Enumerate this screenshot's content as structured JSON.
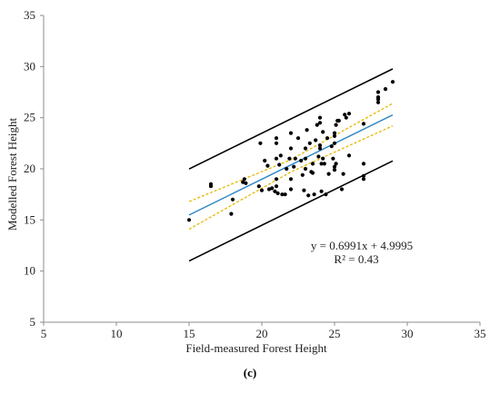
{
  "chart_data": {
    "type": "scatter",
    "xlabel": "Field-measured Forest Height",
    "ylabel": "Modelled Forest Height",
    "xlim": [
      5,
      35
    ],
    "ylim": [
      5,
      35
    ],
    "x_ticks": [
      5,
      10,
      15,
      20,
      25,
      30,
      35
    ],
    "y_ticks": [
      5,
      10,
      15,
      20,
      25,
      30,
      35
    ],
    "grid": false,
    "points": [
      [
        15.0,
        15.0
      ],
      [
        16.5,
        18.5
      ],
      [
        16.5,
        18.3
      ],
      [
        17.9,
        15.6
      ],
      [
        18.0,
        17.0
      ],
      [
        18.7,
        18.7
      ],
      [
        18.8,
        19.0
      ],
      [
        18.9,
        18.6
      ],
      [
        19.8,
        18.3
      ],
      [
        19.9,
        22.5
      ],
      [
        20.0,
        17.9
      ],
      [
        20.2,
        20.8
      ],
      [
        20.4,
        20.3
      ],
      [
        20.5,
        18.0
      ],
      [
        20.7,
        18.1
      ],
      [
        20.9,
        17.8
      ],
      [
        21.0,
        22.5
      ],
      [
        21.0,
        21.0
      ],
      [
        21.0,
        19.0
      ],
      [
        21.0,
        18.3
      ],
      [
        21.0,
        23.0
      ],
      [
        21.1,
        17.6
      ],
      [
        21.2,
        20.4
      ],
      [
        21.3,
        21.3
      ],
      [
        21.4,
        17.5
      ],
      [
        21.6,
        17.5
      ],
      [
        21.7,
        20.0
      ],
      [
        21.9,
        21.0
      ],
      [
        22.0,
        19.0
      ],
      [
        22.0,
        18.0
      ],
      [
        22.0,
        22.0
      ],
      [
        22.0,
        23.5
      ],
      [
        22.2,
        20.2
      ],
      [
        22.3,
        21.0
      ],
      [
        22.5,
        23.0
      ],
      [
        22.7,
        20.8
      ],
      [
        22.8,
        19.4
      ],
      [
        22.9,
        17.9
      ],
      [
        23.0,
        21.0
      ],
      [
        23.0,
        22.0
      ],
      [
        23.0,
        20.0
      ],
      [
        23.1,
        23.8
      ],
      [
        23.2,
        17.4
      ],
      [
        23.3,
        22.5
      ],
      [
        23.4,
        19.7
      ],
      [
        23.5,
        19.6
      ],
      [
        23.5,
        20.5
      ],
      [
        23.6,
        17.5
      ],
      [
        23.7,
        22.8
      ],
      [
        23.8,
        24.3
      ],
      [
        23.9,
        21.2
      ],
      [
        24.0,
        22.3
      ],
      [
        24.0,
        22.0
      ],
      [
        24.0,
        25.0
      ],
      [
        24.0,
        24.5
      ],
      [
        24.1,
        20.5
      ],
      [
        24.1,
        17.8
      ],
      [
        24.2,
        21.0
      ],
      [
        24.2,
        23.6
      ],
      [
        24.3,
        20.5
      ],
      [
        24.4,
        17.5
      ],
      [
        24.5,
        23.0
      ],
      [
        24.6,
        19.5
      ],
      [
        24.8,
        22.2
      ],
      [
        24.9,
        21.0
      ],
      [
        25.0,
        23.5
      ],
      [
        25.0,
        22.5
      ],
      [
        25.0,
        23.2
      ],
      [
        25.0,
        20.2
      ],
      [
        25.0,
        19.9
      ],
      [
        25.1,
        24.3
      ],
      [
        25.1,
        20.5
      ],
      [
        25.2,
        24.7
      ],
      [
        25.3,
        24.7
      ],
      [
        25.5,
        18.0
      ],
      [
        25.6,
        19.5
      ],
      [
        25.7,
        25.3
      ],
      [
        25.8,
        25.0
      ],
      [
        26.0,
        21.3
      ],
      [
        26.0,
        25.4
      ],
      [
        27.0,
        19.0
      ],
      [
        27.0,
        19.3
      ],
      [
        27.0,
        20.5
      ],
      [
        27.0,
        24.4
      ],
      [
        28.0,
        26.5
      ],
      [
        28.0,
        26.8
      ],
      [
        28.0,
        27.0
      ],
      [
        28.0,
        27.5
      ],
      [
        28.5,
        27.8
      ],
      [
        29.0,
        28.5
      ]
    ],
    "fit": {
      "slope": 0.6991,
      "intercept": 4.9995,
      "x_range": [
        15,
        29
      ]
    },
    "prediction_bounds": {
      "upper_offset": 4.5,
      "lower_offset": -4.5,
      "x_range": [
        15,
        29
      ]
    },
    "confidence_band": {
      "upper": [
        [
          15,
          16.8
        ],
        [
          22,
          20.9
        ],
        [
          29,
          26.4
        ]
      ],
      "lower": [
        [
          15,
          14.1
        ],
        [
          22,
          19.7
        ],
        [
          29,
          24.2
        ]
      ]
    },
    "annotation": {
      "equation": "y = 0.6991x + 4.9995",
      "r2": "R² = 0.43"
    },
    "colors": {
      "points": "#000000",
      "fit": "#2e86c1",
      "confidence": "#e6b800",
      "bounds": "#000000",
      "axis": "#8c8c8c"
    },
    "caption": "(c)"
  }
}
